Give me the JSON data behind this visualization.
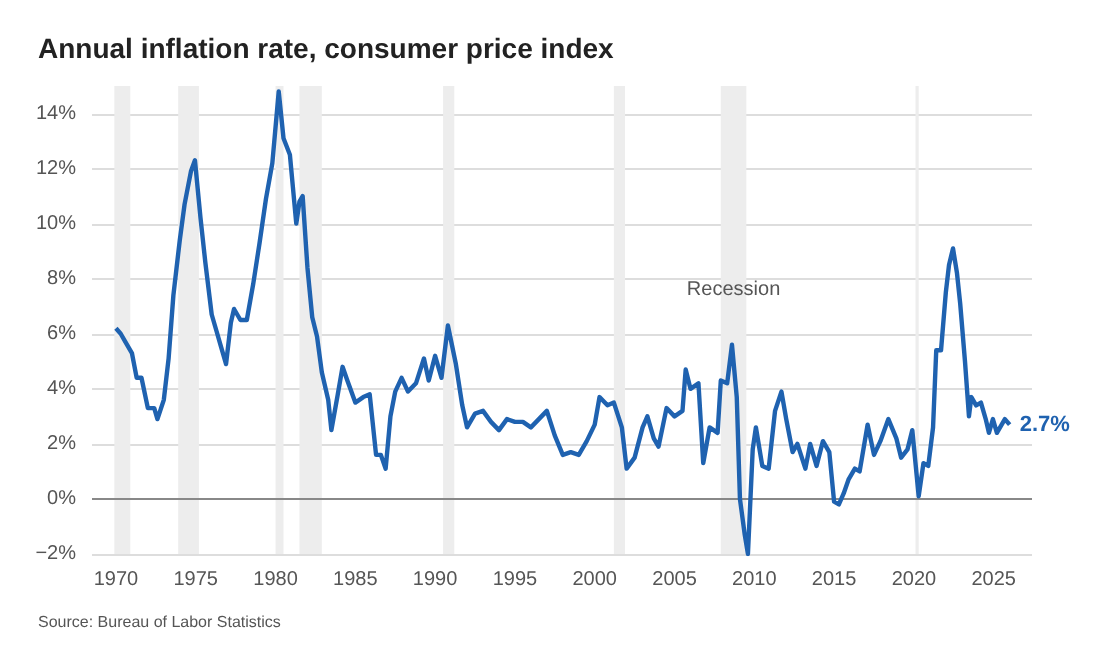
{
  "chart_data": {
    "type": "line",
    "title": "Annual inflation rate, consumer price index",
    "x": [
      1970.0,
      1970.3,
      1970.6,
      1971.0,
      1971.3,
      1971.6,
      1972.0,
      1972.4,
      1972.6,
      1973.0,
      1973.3,
      1973.6,
      1974.0,
      1974.3,
      1974.7,
      1974.95,
      1975.3,
      1975.6,
      1976.0,
      1976.3,
      1976.6,
      1976.9,
      1977.2,
      1977.4,
      1977.8,
      1978.2,
      1978.6,
      1979.0,
      1979.4,
      1979.8,
      1980.2,
      1980.5,
      1980.9,
      1981.3,
      1981.5,
      1981.7,
      1982.0,
      1982.3,
      1982.6,
      1982.9,
      1983.3,
      1983.5,
      1983.9,
      1984.2,
      1984.5,
      1985.0,
      1985.5,
      1985.9,
      1986.3,
      1986.6,
      1986.9,
      1987.2,
      1987.5,
      1987.9,
      1988.3,
      1988.8,
      1989.3,
      1989.6,
      1990.0,
      1990.4,
      1990.8,
      1991.3,
      1991.7,
      1992.0,
      1992.5,
      1993.0,
      1993.5,
      1994.0,
      1994.5,
      1995.0,
      1995.5,
      1996.0,
      1996.5,
      1997.0,
      1997.5,
      1998.0,
      1998.5,
      1999.0,
      1999.5,
      2000.0,
      2000.3,
      2000.8,
      2001.2,
      2001.7,
      2002.0,
      2002.5,
      2003.0,
      2003.3,
      2003.7,
      2004.0,
      2004.5,
      2005.0,
      2005.5,
      2005.7,
      2006.0,
      2006.5,
      2006.8,
      2007.2,
      2007.7,
      2007.9,
      2008.3,
      2008.6,
      2008.9,
      2009.1,
      2009.4,
      2009.6,
      2009.9,
      2010.1,
      2010.5,
      2010.9,
      2011.3,
      2011.7,
      2012.0,
      2012.4,
      2012.7,
      2013.2,
      2013.5,
      2013.9,
      2014.3,
      2014.7,
      2015.0,
      2015.3,
      2015.6,
      2015.9,
      2016.3,
      2016.6,
      2017.1,
      2017.5,
      2017.9,
      2018.4,
      2018.9,
      2019.2,
      2019.6,
      2019.9,
      2020.3,
      2020.6,
      2020.9,
      2021.2,
      2021.4,
      2021.7,
      2022.0,
      2022.2,
      2022.45,
      2022.7,
      2022.9,
      2023.2,
      2023.45,
      2023.6,
      2023.9,
      2024.2,
      2024.5,
      2024.7,
      2024.95,
      2025.2,
      2025.5,
      2025.7,
      2026.0
    ],
    "series": [
      {
        "color": "#1f62b0",
        "values": [
          6.2,
          6.0,
          5.7,
          5.3,
          4.4,
          4.4,
          3.3,
          3.3,
          2.9,
          3.6,
          5.1,
          7.4,
          9.4,
          10.7,
          11.9,
          12.3,
          10.2,
          8.6,
          6.7,
          6.1,
          5.5,
          4.9,
          6.4,
          6.9,
          6.5,
          6.5,
          7.8,
          9.3,
          10.9,
          12.2,
          14.8,
          13.1,
          12.5,
          10.0,
          10.8,
          11.0,
          8.4,
          6.6,
          5.9,
          4.6,
          3.6,
          2.5,
          3.8,
          4.8,
          4.3,
          3.5,
          3.7,
          3.8,
          1.6,
          1.6,
          1.1,
          3.0,
          3.9,
          4.4,
          3.9,
          4.2,
          5.1,
          4.3,
          5.2,
          4.4,
          6.3,
          4.9,
          3.4,
          2.6,
          3.1,
          3.2,
          2.8,
          2.5,
          2.9,
          2.8,
          2.8,
          2.6,
          2.9,
          3.2,
          2.3,
          1.6,
          1.7,
          1.6,
          2.1,
          2.7,
          3.7,
          3.4,
          3.5,
          2.6,
          1.1,
          1.5,
          2.6,
          3.0,
          2.2,
          1.9,
          3.3,
          3.0,
          3.2,
          4.7,
          4.0,
          4.2,
          1.3,
          2.6,
          2.4,
          4.3,
          4.2,
          5.6,
          3.7,
          0.0,
          -1.3,
          -2.0,
          1.8,
          2.6,
          1.2,
          1.1,
          3.2,
          3.9,
          2.9,
          1.7,
          2.0,
          1.1,
          2.0,
          1.2,
          2.1,
          1.7,
          -0.1,
          -0.2,
          0.2,
          0.7,
          1.1,
          1.0,
          2.7,
          1.6,
          2.1,
          2.9,
          2.2,
          1.5,
          1.8,
          2.5,
          0.1,
          1.3,
          1.2,
          2.6,
          5.4,
          5.4,
          7.5,
          8.5,
          9.1,
          8.2,
          7.1,
          5.0,
          3.0,
          3.7,
          3.4,
          3.5,
          2.9,
          2.4,
          2.9,
          2.4,
          2.7,
          2.9,
          2.7
        ]
      }
    ],
    "xlim": [
      1968.5,
      2027.4
    ],
    "xticks": [
      1970,
      1975,
      1980,
      1985,
      1990,
      1995,
      2000,
      2005,
      2010,
      2015,
      2020,
      2025
    ],
    "ylim": [
      -2,
      15
    ],
    "yticks": [
      {
        "value": -2,
        "label": "−2%"
      },
      {
        "value": 0,
        "label": "0%"
      },
      {
        "value": 2,
        "label": "2%"
      },
      {
        "value": 4,
        "label": "4%"
      },
      {
        "value": 6,
        "label": "6%"
      },
      {
        "value": 8,
        "label": "8%"
      },
      {
        "value": 10,
        "label": "10%"
      },
      {
        "value": 12,
        "label": "12%"
      },
      {
        "value": 14,
        "label": "14%"
      }
    ],
    "grid": "y",
    "marker": "none",
    "line_style": "solid",
    "ref_lines": [
      {
        "axis": "y",
        "value": 0,
        "color": "#888888"
      }
    ],
    "bands": [
      {
        "axis": "x",
        "from": 1969.9,
        "to": 1970.9,
        "color": "#ededed"
      },
      {
        "axis": "x",
        "from": 1973.9,
        "to": 1975.2,
        "color": "#ededed"
      },
      {
        "axis": "x",
        "from": 1980.0,
        "to": 1980.5,
        "color": "#ededed"
      },
      {
        "axis": "x",
        "from": 1981.5,
        "to": 1982.9,
        "color": "#ededed"
      },
      {
        "axis": "x",
        "from": 1990.5,
        "to": 1991.2,
        "color": "#ededed"
      },
      {
        "axis": "x",
        "from": 2001.2,
        "to": 2001.9,
        "color": "#ededed"
      },
      {
        "axis": "x",
        "from": 2007.9,
        "to": 2009.5,
        "color": "#ededed",
        "label": "Recession"
      },
      {
        "axis": "x",
        "from": 2020.1,
        "to": 2020.3,
        "color": "#ededed"
      }
    ],
    "annotations": [
      {
        "text": "2.7%",
        "x": 2026.0,
        "y": 2.7
      },
      "Source: Bureau of Labor Statistics"
    ]
  }
}
